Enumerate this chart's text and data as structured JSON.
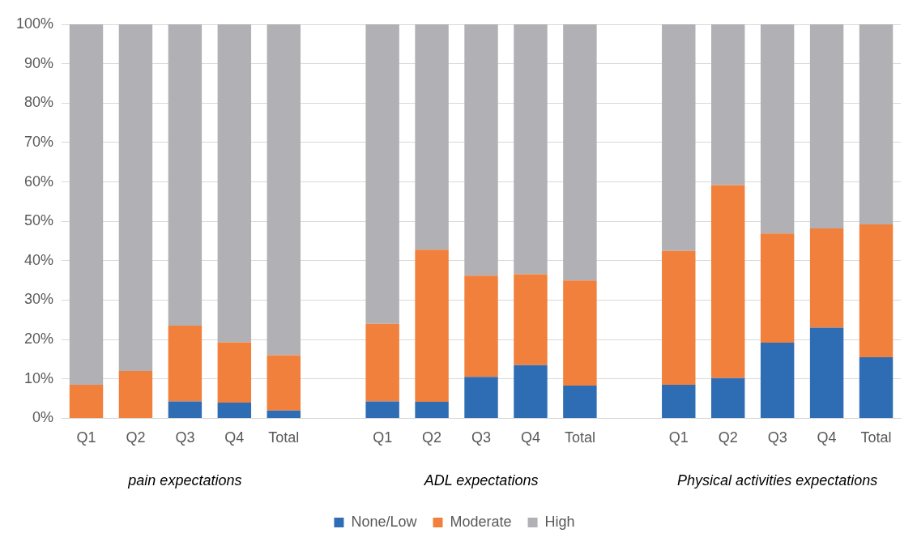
{
  "chart_data": {
    "type": "bar",
    "stacked": true,
    "categories": [
      "Q1",
      "Q2",
      "Q3",
      "Q4",
      "Total",
      null,
      "Q1",
      "Q2",
      "Q3",
      "Q4",
      "Total",
      null,
      "Q1",
      "Q2",
      "Q3",
      "Q4",
      "Total"
    ],
    "series": [
      {
        "name": "None/Low",
        "color": "#2e6db4",
        "values": [
          0,
          0,
          4.3,
          4,
          2,
          null,
          4.3,
          4.2,
          10.5,
          13.5,
          8.3,
          null,
          8.5,
          10.2,
          19.2,
          23,
          15.5
        ]
      },
      {
        "name": "Moderate",
        "color": "#f0803c",
        "values": [
          8.5,
          12,
          19.2,
          15.3,
          14,
          null,
          19.7,
          38.6,
          25.7,
          23.1,
          26.7,
          null,
          34,
          49,
          27.7,
          25.2,
          33.7
        ]
      },
      {
        "name": "High",
        "color": "#b1b1b5",
        "values": [
          91.5,
          88,
          76.5,
          80.7,
          84,
          null,
          76,
          57.2,
          63.8,
          63.4,
          65,
          null,
          57.5,
          40.8,
          53.1,
          51.8,
          50.8
        ]
      }
    ],
    "ylim": [
      0,
      100
    ],
    "yticks": [
      {
        "value": 0,
        "label": "0%"
      },
      {
        "value": 10,
        "label": "10%"
      },
      {
        "value": 20,
        "label": "20%"
      },
      {
        "value": 30,
        "label": "30%"
      },
      {
        "value": 40,
        "label": "40%"
      },
      {
        "value": 50,
        "label": "50%"
      },
      {
        "value": 60,
        "label": "60%"
      },
      {
        "value": 70,
        "label": "70%"
      },
      {
        "value": 80,
        "label": "80%"
      },
      {
        "value": 90,
        "label": "90%"
      },
      {
        "value": 100,
        "label": "100%"
      }
    ],
    "grid": "y",
    "legend": "bottom",
    "annotations": [
      "pain expectations",
      "ADL expectations",
      "Physical activities expectations"
    ]
  }
}
